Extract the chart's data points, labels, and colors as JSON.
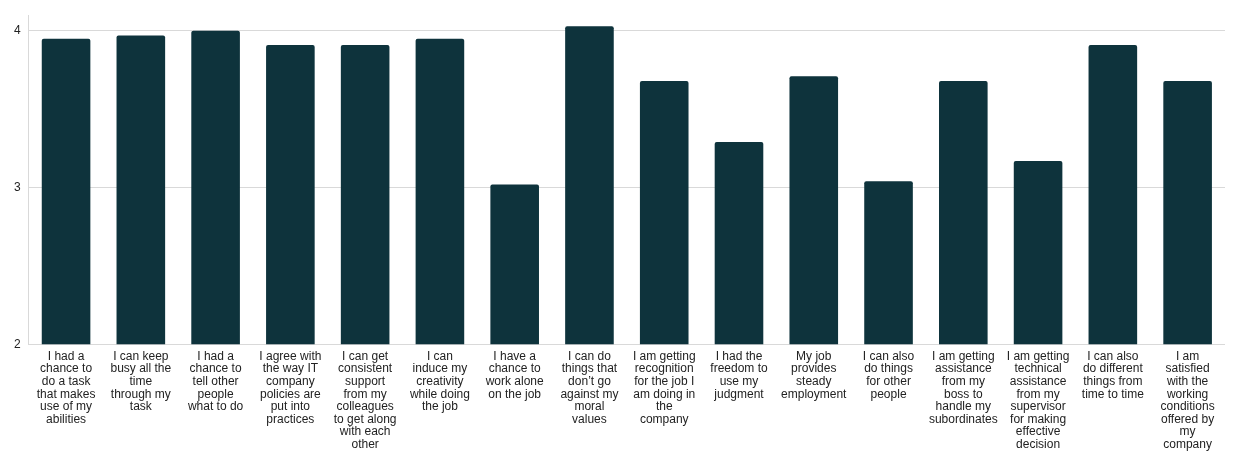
{
  "chart_data": {
    "type": "bar",
    "categories": [
      "I had a chance to do a task that makes use of my abilities",
      "I can keep busy all the time through my task",
      "I had a chance to tell other people what to do",
      "I agree with the way IT company policies are put into practices",
      "I can get consistent support from my colleagues to get along with each other",
      "I can induce my creativity while doing the job",
      "I have a chance to work alone on the job",
      "I can do things that don’t go against my moral values",
      "I am getting recognition for the job I am doing in the company",
      "I had the freedom to use my judgment",
      "My job provides steady employment",
      "I can also do things for other people",
      "I am getting assistance from my boss to handle my subordinates",
      "I am getting technical assistance from my supervisor for making effective decision",
      "I can also do different things from time to time",
      "I am satisfied with the working conditions offered by my company"
    ],
    "values": [
      3.95,
      3.97,
      4.0,
      3.91,
      3.91,
      3.95,
      3.02,
      4.03,
      3.68,
      3.29,
      3.71,
      3.04,
      3.68,
      3.17,
      3.91,
      3.68
    ],
    "color": "#0e333c",
    "ylim": [
      2,
      4.1
    ],
    "yticks": [
      2,
      3,
      4
    ],
    "grid": "y",
    "legend": false
  }
}
